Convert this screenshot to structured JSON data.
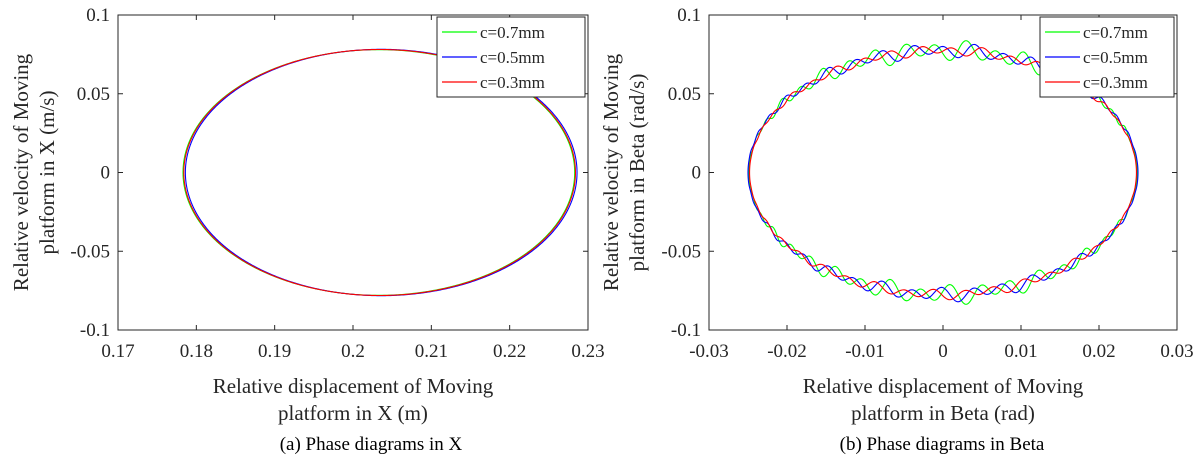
{
  "figure": {
    "captions": [
      "(a) Phase diagrams in X",
      "(b) Phase diagrams in Beta"
    ]
  },
  "chart_data": [
    {
      "type": "line",
      "title": "",
      "xlabel": [
        "Relative displacement of Moving",
        "platform in X (m)"
      ],
      "ylabel": [
        "Relative velocity of Moving",
        "platform in X (m/s)"
      ],
      "xlim": [
        0.17,
        0.23
      ],
      "ylim": [
        -0.1,
        0.1
      ],
      "xticks": [
        "0.17",
        "0.18",
        "0.19",
        "0.2",
        "0.21",
        "0.22",
        "0.23"
      ],
      "yticks": [
        "-0.1",
        "-0.05",
        "0",
        "0.05",
        "0.1"
      ],
      "grid": false,
      "legend_position": "top-right",
      "series": [
        {
          "name": "c=0.7mm",
          "color": "#00ff00",
          "center_x": 0.2033,
          "amplitude_x": 0.025,
          "amplitude_y": 0.078,
          "ripple_y": 0.0
        },
        {
          "name": "c=0.5mm",
          "color": "#0000ff",
          "center_x": 0.2036,
          "amplitude_x": 0.025,
          "amplitude_y": 0.0782,
          "ripple_y": 0.0
        },
        {
          "name": "c=0.3mm",
          "color": "#ff0000",
          "center_x": 0.2034,
          "amplitude_x": 0.025,
          "amplitude_y": 0.0781,
          "ripple_y": 0.0
        }
      ]
    },
    {
      "type": "line",
      "title": "",
      "xlabel": [
        "Relative displacement of Moving",
        "platform in Beta (rad)"
      ],
      "ylabel": [
        "Relative velocity of Moving",
        "platform in Beta (rad/s)"
      ],
      "xlim": [
        -0.03,
        0.03
      ],
      "ylim": [
        -0.1,
        0.1
      ],
      "xticks": [
        "-0.03",
        "-0.02",
        "-0.01",
        "0",
        "0.01",
        "0.02",
        "0.03"
      ],
      "yticks": [
        "-0.1",
        "-0.05",
        "0",
        "0.05",
        "0.1"
      ],
      "grid": false,
      "legend_position": "top-right",
      "series": [
        {
          "name": "c=0.7mm",
          "color": "#00ff00",
          "center_x": 0.0,
          "amplitude_x": 0.0249,
          "amplitude_y": 0.0775,
          "ripple_y": 0.007
        },
        {
          "name": "c=0.5mm",
          "color": "#0000ff",
          "center_x": 0.0,
          "amplitude_x": 0.025,
          "amplitude_y": 0.0775,
          "ripple_y": 0.005
        },
        {
          "name": "c=0.3mm",
          "color": "#ff0000",
          "center_x": 0.0,
          "amplitude_x": 0.0248,
          "amplitude_y": 0.0775,
          "ripple_y": 0.0035
        }
      ]
    }
  ]
}
